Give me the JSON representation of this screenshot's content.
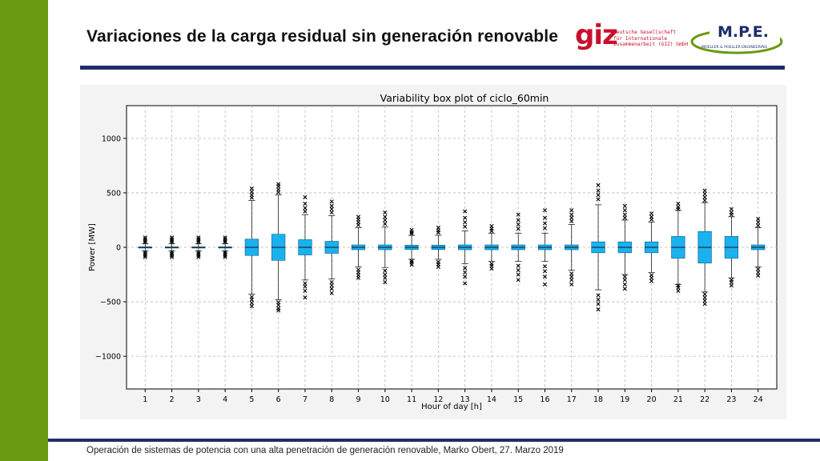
{
  "slide": {
    "title": "Variaciones de la carga residual sin generación renovable",
    "footer": "Operación de sistemas de potencia con una alta penetración de generación renovable, Marko Obert, 27. Marzo 2019",
    "accent_color": "#6a9a12",
    "rule_color": "#1f2d6b"
  },
  "logos": {
    "giz": {
      "mark": "giz",
      "text": "Deutsche Gesellschaft\nfür Internationale\nZusammenarbeit (GIZ) GmbH",
      "color": "#c8102e"
    },
    "mpe": {
      "mark": "M.P.E.",
      "text": "MOELLER & POELLER ENGINEERING",
      "color": "#1f2d6b",
      "swoosh_color": "#6a9a12"
    }
  },
  "chart_data": {
    "type": "box",
    "title": "Variability box plot of ciclo_60min",
    "xlabel": "Hour of day [h]",
    "ylabel": "Power [MW]",
    "categories": [
      "1",
      "2",
      "3",
      "4",
      "5",
      "6",
      "7",
      "8",
      "9",
      "10",
      "11",
      "12",
      "13",
      "14",
      "15",
      "16",
      "17",
      "18",
      "19",
      "20",
      "21",
      "22",
      "23",
      "24"
    ],
    "ylim": [
      -1300,
      1300
    ],
    "yticks": [
      1000,
      500,
      0,
      -500,
      -1000
    ],
    "ytick_labels": [
      "1000",
      "500",
      "0",
      "−500",
      "−1000"
    ],
    "grid": true,
    "box_color": "#1ab2ee",
    "boxes": [
      {
        "q1": -4,
        "median": 0,
        "q3": 4,
        "whisker_low": -35,
        "whisker_high": 35,
        "fliers": [
          -90,
          -75,
          -60,
          -45,
          45,
          60,
          75,
          90
        ]
      },
      {
        "q1": -4,
        "median": 0,
        "q3": 4,
        "whisker_low": -35,
        "whisker_high": 35,
        "fliers": [
          -90,
          -75,
          -60,
          -45,
          45,
          60,
          75,
          90
        ]
      },
      {
        "q1": -4,
        "median": 0,
        "q3": 4,
        "whisker_low": -35,
        "whisker_high": 35,
        "fliers": [
          -90,
          -75,
          -60,
          -45,
          45,
          60,
          75,
          90
        ]
      },
      {
        "q1": -4,
        "median": 0,
        "q3": 4,
        "whisker_low": -35,
        "whisker_high": 35,
        "fliers": [
          -90,
          -75,
          -60,
          -45,
          45,
          60,
          75,
          90
        ]
      },
      {
        "q1": -75,
        "median": 0,
        "q3": 75,
        "whisker_low": -430,
        "whisker_high": 430,
        "fliers": [
          -540,
          -510,
          -480,
          -455,
          455,
          480,
          510,
          540
        ]
      },
      {
        "q1": -120,
        "median": 0,
        "q3": 120,
        "whisker_low": -480,
        "whisker_high": 480,
        "fliers": [
          -580,
          -560,
          -530,
          -505,
          505,
          530,
          560,
          580
        ]
      },
      {
        "q1": -70,
        "median": 0,
        "q3": 70,
        "whisker_low": -300,
        "whisker_high": 300,
        "fliers": [
          -460,
          -400,
          -360,
          -330,
          330,
          360,
          400,
          460
        ]
      },
      {
        "q1": -55,
        "median": 0,
        "q3": 55,
        "whisker_low": -290,
        "whisker_high": 290,
        "fliers": [
          -420,
          -380,
          -350,
          -320,
          320,
          350,
          380,
          420
        ]
      },
      {
        "q1": -22,
        "median": 0,
        "q3": 22,
        "whisker_low": -180,
        "whisker_high": 180,
        "fliers": [
          -280,
          -255,
          -230,
          -205,
          205,
          230,
          255,
          280
        ]
      },
      {
        "q1": -22,
        "median": 0,
        "q3": 22,
        "whisker_low": -185,
        "whisker_high": 185,
        "fliers": [
          -320,
          -280,
          -250,
          -215,
          215,
          250,
          280,
          320
        ]
      },
      {
        "q1": -20,
        "median": 0,
        "q3": 20,
        "whisker_low": -110,
        "whisker_high": 110,
        "fliers": [
          -160,
          -140,
          -125,
          125,
          140,
          160
        ]
      },
      {
        "q1": -20,
        "median": 0,
        "q3": 20,
        "whisker_low": -110,
        "whisker_high": 110,
        "fliers": [
          -180,
          -155,
          -135,
          135,
          155,
          180
        ]
      },
      {
        "q1": -22,
        "median": 0,
        "q3": 22,
        "whisker_low": -150,
        "whisker_high": 150,
        "fliers": [
          -330,
          -270,
          -230,
          -190,
          190,
          230,
          270,
          330
        ]
      },
      {
        "q1": -22,
        "median": 0,
        "q3": 22,
        "whisker_low": -130,
        "whisker_high": 130,
        "fliers": [
          -195,
          -170,
          -150,
          150,
          170,
          195
        ]
      },
      {
        "q1": -22,
        "median": 0,
        "q3": 22,
        "whisker_low": -130,
        "whisker_high": 130,
        "fliers": [
          -300,
          -250,
          -210,
          -170,
          170,
          210,
          250,
          300
        ]
      },
      {
        "q1": -22,
        "median": 0,
        "q3": 22,
        "whisker_low": -130,
        "whisker_high": 130,
        "fliers": [
          -340,
          -270,
          -220,
          -175,
          175,
          220,
          270,
          340
        ]
      },
      {
        "q1": -22,
        "median": 0,
        "q3": 22,
        "whisker_low": -210,
        "whisker_high": 210,
        "fliers": [
          -340,
          -300,
          -270,
          -240,
          240,
          270,
          300,
          340
        ]
      },
      {
        "q1": -50,
        "median": 0,
        "q3": 50,
        "whisker_low": -390,
        "whisker_high": 390,
        "fliers": [
          -570,
          -520,
          -480,
          -440,
          440,
          480,
          520,
          570
        ]
      },
      {
        "q1": -50,
        "median": 0,
        "q3": 50,
        "whisker_low": -250,
        "whisker_high": 250,
        "fliers": [
          -380,
          -340,
          -300,
          -270,
          270,
          300,
          340,
          380
        ]
      },
      {
        "q1": -50,
        "median": 0,
        "q3": 50,
        "whisker_low": -230,
        "whisker_high": 230,
        "fliers": [
          -310,
          -280,
          -255,
          255,
          280,
          310
        ]
      },
      {
        "q1": -100,
        "median": 0,
        "q3": 100,
        "whisker_low": -340,
        "whisker_high": 340,
        "fliers": [
          -400,
          -370,
          -350,
          350,
          370,
          400
        ]
      },
      {
        "q1": -145,
        "median": 0,
        "q3": 145,
        "whisker_low": -410,
        "whisker_high": 410,
        "fliers": [
          -520,
          -490,
          -460,
          -430,
          430,
          460,
          490,
          520
        ]
      },
      {
        "q1": -100,
        "median": 0,
        "q3": 100,
        "whisker_low": -280,
        "whisker_high": 280,
        "fliers": [
          -350,
          -320,
          -300,
          300,
          320,
          350
        ]
      },
      {
        "q1": -22,
        "median": 0,
        "q3": 22,
        "whisker_low": -180,
        "whisker_high": 180,
        "fliers": [
          -260,
          -230,
          -200,
          200,
          230,
          260
        ]
      }
    ]
  }
}
